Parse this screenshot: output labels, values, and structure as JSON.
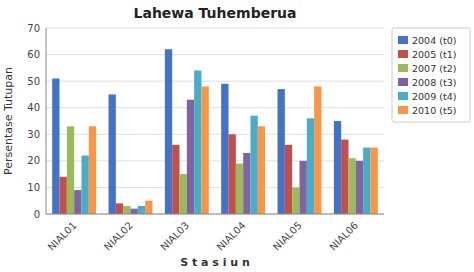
{
  "chart_data": {
    "type": "bar",
    "title": "Lahewa Tuhemberua",
    "xlabel": "S t a s i u n",
    "ylabel": "Persentase Tutupan",
    "categories": [
      "NIAL01",
      "NIAL02",
      "NIAL03",
      "NIAL04",
      "NIAL05",
      "NIAL06"
    ],
    "series": [
      {
        "name": "2004 (t0)",
        "color": "#4472C4",
        "values": [
          51,
          45,
          62,
          49,
          47,
          35
        ]
      },
      {
        "name": "2005 (t1)",
        "color": "#C0504D",
        "values": [
          14,
          4,
          26,
          30,
          26,
          28
        ]
      },
      {
        "name": "2007 (t2)",
        "color": "#9BBB59",
        "values": [
          33,
          3,
          15,
          19,
          10,
          21
        ]
      },
      {
        "name": "2008 (t3)",
        "color": "#8064A2",
        "values": [
          9,
          2,
          43,
          23,
          20,
          20
        ]
      },
      {
        "name": "2009 (t4)",
        "color": "#4BACC6",
        "values": [
          22,
          3,
          54,
          37,
          36,
          25
        ]
      },
      {
        "name": "2010 (t5)",
        "color": "#F79646",
        "values": [
          33,
          5,
          48,
          33,
          48,
          25
        ]
      }
    ],
    "ylim": [
      0,
      70
    ],
    "yticks": [
      0,
      10,
      20,
      30,
      40,
      50,
      60,
      70
    ],
    "grid": true,
    "legend": "right"
  }
}
